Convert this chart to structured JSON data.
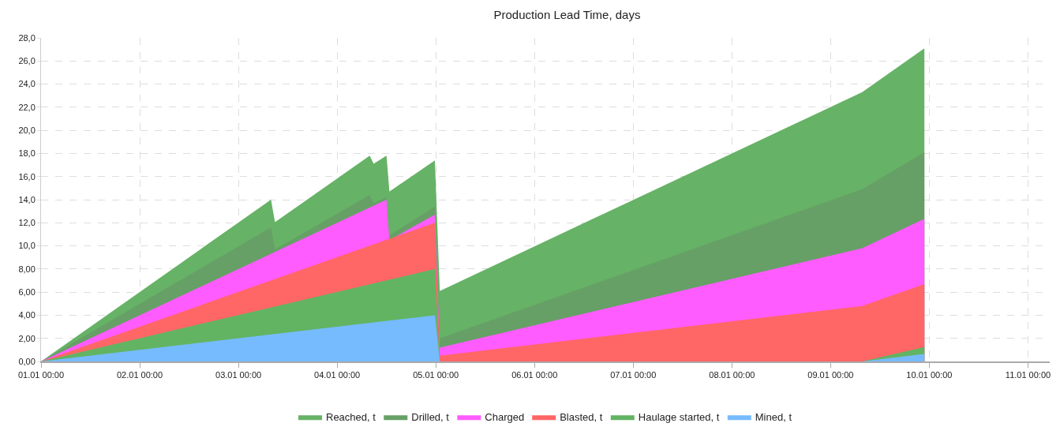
{
  "chart_data": {
    "type": "area",
    "title": "Production Lead Time, days",
    "series": [
      {
        "name": "Reached, t",
        "color": "#66b266",
        "x": [
          "--01-01T00:00",
          "--01-03T07:55",
          "--01-03T08:53",
          "--01-04T07:55",
          "--01-04T08:53",
          "--01-04T12:00",
          "--01-04T12:43",
          "--01-04T23:46",
          "--01-05T00:58",
          "--01-09T07:41",
          "--01-09T22:48"
        ],
        "values": [
          0,
          14,
          12.05,
          17.8,
          17.1,
          17.8,
          14.7,
          17.4,
          6.1,
          23.3,
          27.1
        ]
      },
      {
        "name": "Drilled, t",
        "color": "#66a066",
        "x": [
          "--01-01T00:00",
          "--01-03T07:55",
          "--01-03T08:53",
          "--01-04T07:55",
          "--01-04T08:53",
          "--01-04T12:00",
          "--01-04T12:43",
          "--01-04T23:46",
          "--01-05T00:58",
          "--01-09T07:41",
          "--01-09T22:48"
        ],
        "values": [
          0,
          11.6,
          9.7,
          14.4,
          13.7,
          14.2,
          10.9,
          13.4,
          2.0,
          14.9,
          18.1
        ]
      },
      {
        "name": "Charged",
        "color": "#ff5cff",
        "x": [
          "--01-01T00:00",
          "--01-04T12:00",
          "--01-04T12:43",
          "--01-04T23:46",
          "--01-05T00:58",
          "--01-09T07:41",
          "--01-09T22:48"
        ],
        "values": [
          0,
          14,
          10.5,
          12.7,
          1.2,
          9.8,
          12.35
        ]
      },
      {
        "name": "Blasted, t",
        "color": "#ff6666",
        "x": [
          "--01-01T00:00",
          "--01-04T23:46",
          "--01-05T00:58",
          "--01-09T07:41",
          "--01-09T22:48"
        ],
        "values": [
          0,
          12,
          0.5,
          4.8,
          6.7
        ]
      },
      {
        "name": "Haulage started, t",
        "color": "#62b462",
        "x": [
          "--01-01T00:00",
          "--01-04T23:46",
          "--01-05T00:58",
          "--01-09T07:41",
          "--01-09T22:48"
        ],
        "values": [
          0,
          8,
          0,
          0,
          1.25
        ]
      },
      {
        "name": "Mined, t",
        "color": "#77bbff",
        "x": [
          "--01-01T00:00",
          "--01-04T23:46",
          "--01-05T00:58",
          "--01-09T07:41",
          "--01-09T22:48"
        ],
        "values": [
          0,
          4,
          0,
          0,
          0.65
        ]
      }
    ],
    "xlim": [
      "--01-01T00:00",
      "--01-11T05:17"
    ],
    "xticks": [
      {
        "value": "--01-01T00:00",
        "label": "01.01 00:00"
      },
      {
        "value": "--01-02T00:00",
        "label": "02.01 00:00"
      },
      {
        "value": "--01-03T00:00",
        "label": "03.01 00:00"
      },
      {
        "value": "--01-04T00:00",
        "label": "04.01 00:00"
      },
      {
        "value": "--01-05T00:00",
        "label": "05.01 00:00"
      },
      {
        "value": "--01-06T00:00",
        "label": "06.01 00:00"
      },
      {
        "value": "--01-07T00:00",
        "label": "07.01 00:00"
      },
      {
        "value": "--01-08T00:00",
        "label": "08.01 00:00"
      },
      {
        "value": "--01-09T00:00",
        "label": "09.01 00:00"
      },
      {
        "value": "--01-10T00:00",
        "label": "10.01 00:00"
      },
      {
        "value": "--01-11T00:00",
        "label": "11.01 00:00"
      }
    ],
    "ylim": [
      0,
      28
    ],
    "yticks": [
      {
        "value": 0,
        "label": "0,00"
      },
      {
        "value": 2,
        "label": "2,00"
      },
      {
        "value": 4,
        "label": "4,00"
      },
      {
        "value": 6,
        "label": "6,00"
      },
      {
        "value": 8,
        "label": "8,00"
      },
      {
        "value": 10,
        "label": "10,0"
      },
      {
        "value": 12,
        "label": "12,0"
      },
      {
        "value": 14,
        "label": "14,0"
      },
      {
        "value": 16,
        "label": "16,0"
      },
      {
        "value": 18,
        "label": "18,0"
      },
      {
        "value": 20,
        "label": "20,0"
      },
      {
        "value": 22,
        "label": "22,0"
      },
      {
        "value": 24,
        "label": "24,0"
      },
      {
        "value": 26,
        "label": "26,0"
      },
      {
        "value": 28,
        "label": "28,0"
      }
    ],
    "grid": true,
    "legend": "bottom",
    "line_style": "dashed"
  }
}
